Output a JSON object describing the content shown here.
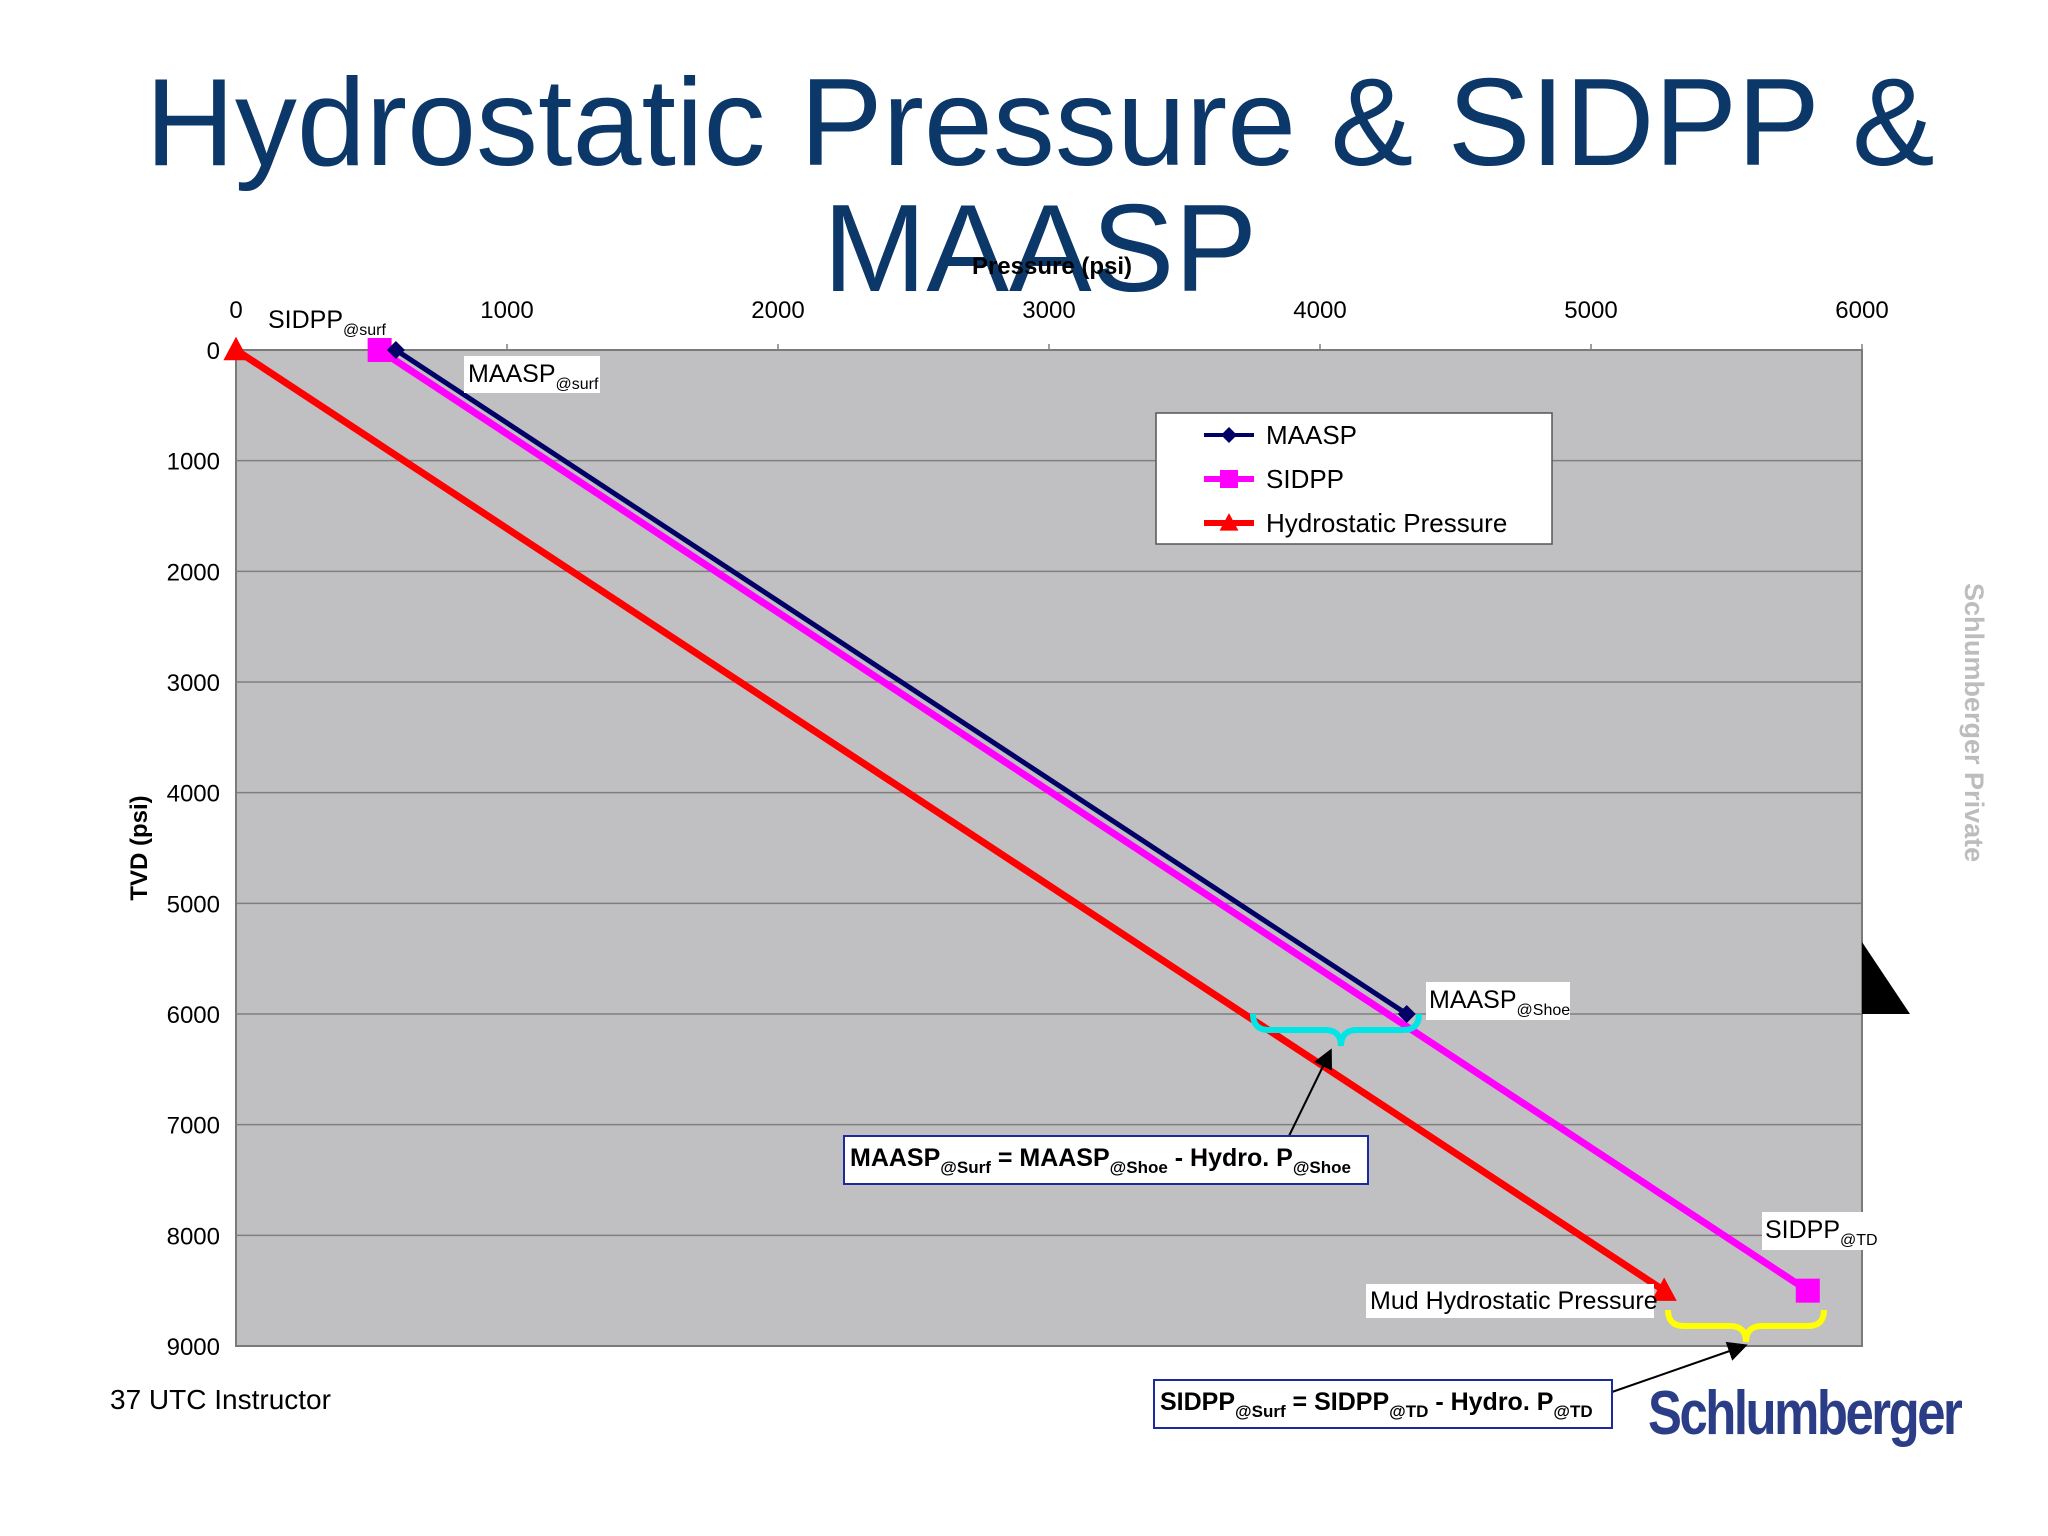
{
  "slide": {
    "title": "Hydrostatic Pressure & SIDPP & MAASP",
    "footer": "37 UTC Instructor",
    "watermark": "Schlumberger Private",
    "logo": "Schlumberger"
  },
  "chart_data": {
    "type": "line",
    "title": "",
    "xlabel": "Pressure (psi)",
    "ylabel": "TVD (psi)",
    "xlim": [
      0,
      6000
    ],
    "ylim": [
      0,
      9000
    ],
    "y_inverted": true,
    "x_axis_position": "top",
    "x_ticks": [
      0,
      1000,
      2000,
      3000,
      4000,
      5000,
      6000
    ],
    "y_ticks": [
      0,
      1000,
      2000,
      3000,
      4000,
      5000,
      6000,
      7000,
      8000,
      9000
    ],
    "grid": "horizontal",
    "plot_background": "#c0bfc2",
    "legend_position": "top-right",
    "series": [
      {
        "name": "MAASP",
        "color": "#000066",
        "marker": "diamond",
        "points": [
          [
            590,
            0
          ],
          [
            4320,
            6000
          ]
        ]
      },
      {
        "name": "SIDPP",
        "color": "#ff00ff",
        "marker": "square",
        "points": [
          [
            530,
            0
          ],
          [
            5800,
            8500
          ]
        ]
      },
      {
        "name": "Hydrostatic Pressure",
        "color": "#ff0000",
        "marker": "triangle",
        "points": [
          [
            0,
            0
          ],
          [
            5270,
            8500
          ]
        ]
      }
    ],
    "annotations": {
      "sidpp_surf": {
        "main": "SIDPP",
        "sub": "@surf"
      },
      "maasp_surf": {
        "main": "MAASP",
        "sub": "@surf"
      },
      "maasp_shoe": {
        "main": "MAASP",
        "sub": "@Shoe"
      },
      "sidpp_td": {
        "main": "SIDPP",
        "sub": "@TD"
      },
      "mud_hydro": {
        "main": "Mud Hydrostatic Pressure"
      }
    },
    "formulas": {
      "maasp": {
        "p1": "MAASP",
        "s1": "@Surf",
        "p2": " = MAASP",
        "s2": "@Shoe",
        "p3": " - Hydro. P",
        "s3": "@Shoe"
      },
      "sidpp": {
        "p1": "SIDPP",
        "s1": "@Surf",
        "p2": " = SIDPP",
        "s2": "@TD",
        "p3": " - Hydro. P",
        "s3": "@TD"
      }
    },
    "brace_colors": {
      "shoe": "#00e5e5",
      "td": "#ffff00"
    }
  }
}
